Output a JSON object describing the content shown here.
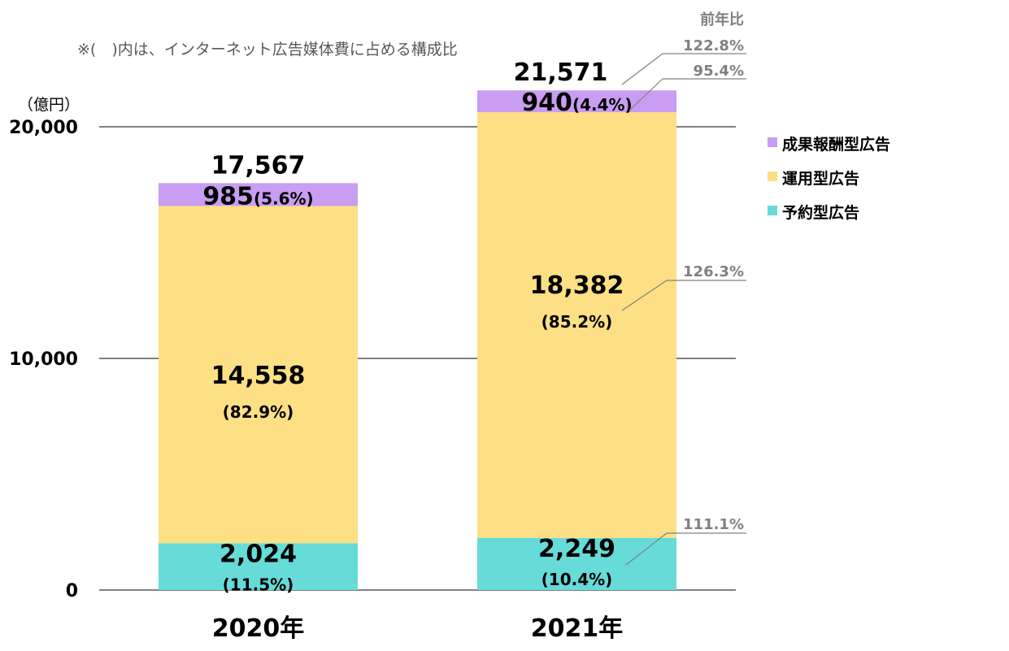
{
  "chart_data": {
    "type": "bar",
    "stacked": true,
    "note": "※(　)内は、インターネット広告媒体費に占める構成比",
    "ylabel": "（億円）",
    "ylim": [
      0,
      20000
    ],
    "y_ticks": [
      "0",
      "10,000",
      "20,000"
    ],
    "grid": true,
    "legend_position": "right",
    "categories": [
      "2020年",
      "2021年"
    ],
    "series": [
      {
        "name": "予約型広告",
        "color": "#66DBD8",
        "values": [
          2024,
          2249
        ],
        "labels": [
          "2,024",
          "2,249"
        ],
        "shares": [
          "(11.5%)",
          "(10.4%)"
        ]
      },
      {
        "name": "運用型広告",
        "color": "#FDDF85",
        "values": [
          14558,
          18382
        ],
        "labels": [
          "14,558",
          "18,382"
        ],
        "shares": [
          "(82.9%)",
          "(85.2%)"
        ]
      },
      {
        "name": "成果報酬型広告",
        "color": "#C89DF2",
        "values": [
          985,
          940
        ],
        "labels": [
          "985",
          "940"
        ],
        "shares": [
          "(5.6%)",
          "(4.4%)"
        ]
      }
    ],
    "totals": [
      "17,567",
      "21,571"
    ],
    "yoy_header": "前年比",
    "yoy": {
      "total": "122.8%",
      "成果報酬型広告": "95.4%",
      "運用型広告": "126.3%",
      "予約型広告": "111.1%"
    },
    "legend_order": [
      "成果報酬型広告",
      "運用型広告",
      "予約型広告"
    ]
  }
}
